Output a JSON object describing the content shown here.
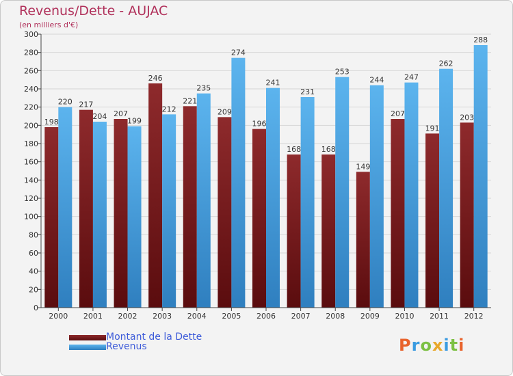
{
  "chart_data": {
    "type": "bar",
    "title": "Revenus/Dette - AUJAC",
    "subtitle": "(en milliers d'€)",
    "xlabel": "",
    "ylabel": "",
    "ylim": [
      0,
      300
    ],
    "ytick_step": 20,
    "grid": true,
    "legend_position": "bottom-left",
    "categories": [
      "2000",
      "2001",
      "2002",
      "2003",
      "2004",
      "2005",
      "2006",
      "2007",
      "2008",
      "2009",
      "2010",
      "2011",
      "2012"
    ],
    "series": [
      {
        "name": "Montant de la Dette",
        "color": "#7a1a1c",
        "values": [
          198,
          217,
          207,
          246,
          221,
          209,
          196,
          168,
          168,
          149,
          207,
          191,
          203
        ]
      },
      {
        "name": "Revenus",
        "color": "#4aa8e8",
        "values": [
          220,
          204,
          199,
          212,
          235,
          274,
          241,
          231,
          253,
          244,
          247,
          262,
          288
        ]
      }
    ]
  },
  "legend": {
    "debt_label": "Montant de la Dette",
    "revenue_label": "Revenus"
  },
  "logo": {
    "text": "Proxiti"
  }
}
